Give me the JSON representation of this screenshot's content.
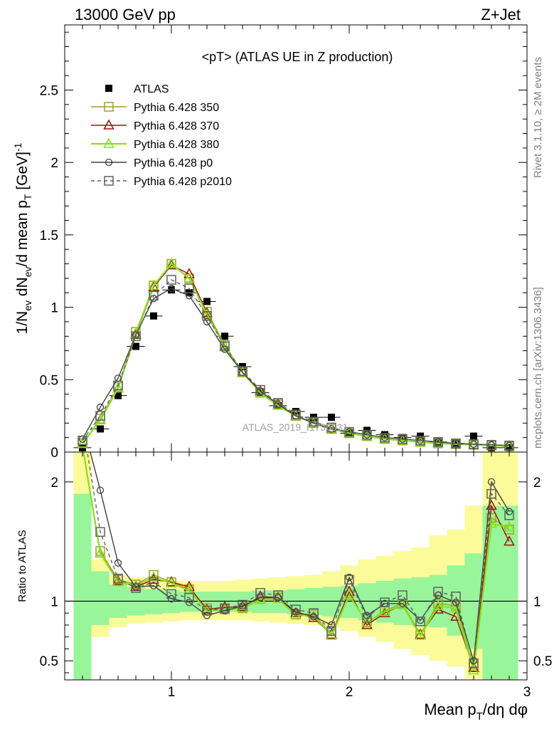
{
  "header": {
    "left": "13000 GeV pp",
    "right": "Z+Jet"
  },
  "side_labels": {
    "rivet": "Rivet 3.1.10, ≥ 2M events",
    "mcplots": "mcplots.cern.ch [arXiv:1306.3436]"
  },
  "colors": {
    "atlas": "#000000",
    "p350": "#a0a020",
    "p370": "#a01010",
    "p380": "#88e020",
    "p0": "#404040",
    "p2010": "#606060",
    "band_inner": "#99f599",
    "band_outer": "#fbfb99"
  },
  "chart_data": [
    {
      "type": "line",
      "title": "<pT> (ATLAS UE in Z production)",
      "ylabel": "1/N_ev dN_ev/d mean p_T [GeV]^-1",
      "watermark": "ATLAS_2019_I1736531",
      "xlim": [
        0.4,
        3.0
      ],
      "ylim": [
        0,
        2.95
      ],
      "yticks": [
        0,
        0.5,
        1,
        1.5,
        2,
        2.5
      ],
      "ytick_labels": [
        "0",
        "0.5",
        "1",
        "1.5",
        "2",
        "2.5"
      ],
      "x": [
        0.5,
        0.6,
        0.7,
        0.8,
        0.9,
        1.0,
        1.1,
        1.2,
        1.3,
        1.4,
        1.5,
        1.6,
        1.7,
        1.8,
        1.9,
        2.0,
        2.1,
        2.2,
        2.3,
        2.4,
        2.5,
        2.6,
        2.7,
        2.8,
        2.9
      ],
      "series": [
        {
          "name": "ATLAS",
          "key": "atlas",
          "marker": "filled-square",
          "line": "none",
          "values": [
            0.03,
            0.16,
            0.39,
            0.73,
            0.94,
            1.12,
            1.1,
            1.04,
            0.8,
            0.59,
            0.41,
            0.32,
            0.28,
            0.24,
            0.24,
            0.13,
            0.15,
            0.12,
            0.1,
            0.11,
            0.07,
            0.06,
            0.11,
            0.03,
            0.03
          ]
        },
        {
          "name": "Pythia 6.428 350",
          "key": "p350",
          "marker": "open-square",
          "line": "solid",
          "values": [
            0.06,
            0.23,
            0.45,
            0.83,
            1.15,
            1.3,
            1.2,
            0.97,
            0.74,
            0.55,
            0.41,
            0.33,
            0.25,
            0.2,
            0.16,
            0.13,
            0.11,
            0.09,
            0.08,
            0.07,
            0.06,
            0.055,
            0.05,
            0.045,
            0.04
          ]
        },
        {
          "name": "Pythia 6.428 370",
          "key": "p370",
          "marker": "open-triangle",
          "line": "solid",
          "values": [
            0.06,
            0.22,
            0.44,
            0.81,
            1.14,
            1.29,
            1.23,
            0.96,
            0.73,
            0.55,
            0.42,
            0.33,
            0.25,
            0.2,
            0.16,
            0.13,
            0.11,
            0.09,
            0.08,
            0.07,
            0.06,
            0.055,
            0.05,
            0.045,
            0.04
          ]
        },
        {
          "name": "Pythia 6.428 380",
          "key": "p380",
          "marker": "open-triangle",
          "line": "solid",
          "values": [
            0.06,
            0.22,
            0.44,
            0.82,
            1.15,
            1.3,
            1.2,
            0.95,
            0.73,
            0.55,
            0.41,
            0.32,
            0.25,
            0.2,
            0.16,
            0.13,
            0.11,
            0.09,
            0.08,
            0.07,
            0.06,
            0.055,
            0.05,
            0.045,
            0.04
          ]
        },
        {
          "name": "Pythia 6.428 p0",
          "key": "p0",
          "marker": "open-circle",
          "line": "solid",
          "values": [
            0.09,
            0.31,
            0.51,
            0.81,
            1.06,
            1.13,
            1.08,
            0.9,
            0.71,
            0.55,
            0.42,
            0.33,
            0.25,
            0.2,
            0.16,
            0.14,
            0.12,
            0.1,
            0.09,
            0.08,
            0.07,
            0.06,
            0.055,
            0.05,
            0.045
          ]
        },
        {
          "name": "Pythia 6.428 p2010",
          "key": "p2010",
          "marker": "open-square",
          "line": "dashed",
          "values": [
            0.08,
            0.25,
            0.46,
            0.8,
            1.08,
            1.19,
            1.13,
            0.94,
            0.73,
            0.56,
            0.43,
            0.34,
            0.26,
            0.21,
            0.17,
            0.14,
            0.12,
            0.1,
            0.09,
            0.08,
            0.07,
            0.06,
            0.055,
            0.05,
            0.045
          ]
        }
      ]
    },
    {
      "type": "line",
      "ylabel": "Ratio to ATLAS",
      "xlabel": "Mean p_T/dη dφ",
      "xlim": [
        0.4,
        3.0
      ],
      "ylim": [
        0.34,
        2.25
      ],
      "yticks": [
        0.5,
        1,
        2
      ],
      "ytick_labels": [
        "0.5",
        "1",
        "2"
      ],
      "xticks": [
        1,
        2,
        3
      ],
      "xtick_labels": [
        "1",
        "2",
        "3"
      ],
      "x": [
        0.5,
        0.6,
        0.7,
        0.8,
        0.9,
        1.0,
        1.1,
        1.2,
        1.3,
        1.4,
        1.5,
        1.6,
        1.7,
        1.8,
        1.9,
        2.0,
        2.1,
        2.2,
        2.3,
        2.4,
        2.5,
        2.6,
        2.7,
        2.8,
        2.9
      ],
      "reference": 1,
      "band_inner_high": [
        1.9,
        1.25,
        1.14,
        1.12,
        1.1,
        1.09,
        1.08,
        1.08,
        1.08,
        1.08,
        1.09,
        1.09,
        1.1,
        1.11,
        1.12,
        1.13,
        1.15,
        1.17,
        1.19,
        1.2,
        1.22,
        1.3,
        1.4,
        1.8,
        1.8
      ],
      "band_inner_low": [
        0.34,
        0.8,
        0.86,
        0.88,
        0.89,
        0.9,
        0.91,
        0.91,
        0.91,
        0.91,
        0.9,
        0.9,
        0.89,
        0.88,
        0.87,
        0.86,
        0.84,
        0.82,
        0.8,
        0.79,
        0.78,
        0.71,
        0.6,
        0.34,
        0.34
      ],
      "band_outer_high": [
        2.25,
        1.35,
        1.22,
        1.2,
        1.18,
        1.17,
        1.17,
        1.17,
        1.17,
        1.18,
        1.19,
        1.2,
        1.21,
        1.22,
        1.25,
        1.3,
        1.35,
        1.38,
        1.42,
        1.45,
        1.55,
        1.6,
        1.8,
        2.25,
        2.25
      ],
      "band_outer_low": [
        0.34,
        0.7,
        0.78,
        0.81,
        0.82,
        0.83,
        0.84,
        0.84,
        0.84,
        0.84,
        0.83,
        0.82,
        0.81,
        0.8,
        0.78,
        0.75,
        0.7,
        0.66,
        0.6,
        0.55,
        0.5,
        0.45,
        0.35,
        0.34,
        0.34
      ],
      "series": [
        {
          "name": "Pythia 6.428 350",
          "key": "p350",
          "marker": "open-square",
          "line": "solid",
          "values": [
            2.3,
            1.42,
            1.18,
            1.14,
            1.22,
            1.16,
            1.1,
            0.94,
            0.93,
            0.94,
            1.02,
            1.03,
            0.89,
            0.89,
            0.72,
            1.05,
            0.82,
            0.92,
            0.98,
            0.72,
            0.98,
            0.96,
            0.45,
            1.7,
            1.6
          ]
        },
        {
          "name": "Pythia 6.428 370",
          "key": "p370",
          "marker": "open-triangle",
          "line": "solid",
          "values": [
            2.3,
            1.4,
            1.17,
            1.12,
            1.18,
            1.16,
            1.12,
            0.93,
            0.95,
            0.95,
            1.04,
            1.03,
            0.9,
            0.86,
            0.72,
            1.08,
            0.8,
            0.9,
            0.97,
            0.72,
            0.93,
            0.87,
            0.44,
            1.8,
            1.5
          ]
        },
        {
          "name": "Pythia 6.428 380",
          "key": "p380",
          "marker": "open-triangle",
          "line": "solid",
          "values": [
            2.3,
            1.4,
            1.16,
            1.13,
            1.2,
            1.15,
            1.09,
            0.92,
            0.93,
            0.94,
            1.01,
            1.02,
            0.88,
            0.88,
            0.71,
            1.05,
            0.82,
            0.91,
            0.97,
            0.71,
            0.96,
            0.94,
            0.42,
            1.65,
            1.62
          ]
        },
        {
          "name": "Pythia 6.428 p0",
          "key": "p0",
          "marker": "open-circle",
          "line": "solid",
          "values": [
            2.5,
            1.93,
            1.32,
            1.12,
            1.13,
            1.02,
            0.99,
            0.88,
            0.92,
            0.96,
            1.03,
            1.03,
            0.91,
            0.87,
            0.8,
            1.2,
            0.88,
            0.98,
            0.98,
            0.84,
            1.05,
            0.99,
            0.5,
            2.0,
            1.75
          ]
        },
        {
          "name": "Pythia 6.428 p2010",
          "key": "p2010",
          "marker": "open-square",
          "line": "dashed",
          "values": [
            2.5,
            1.58,
            1.19,
            1.11,
            1.16,
            1.06,
            1.03,
            0.92,
            0.94,
            0.97,
            1.07,
            1.05,
            0.93,
            0.9,
            0.75,
            1.18,
            0.86,
            0.99,
            1.05,
            0.83,
            1.08,
            1.04,
            0.48,
            1.9,
            1.72
          ]
        }
      ]
    }
  ]
}
